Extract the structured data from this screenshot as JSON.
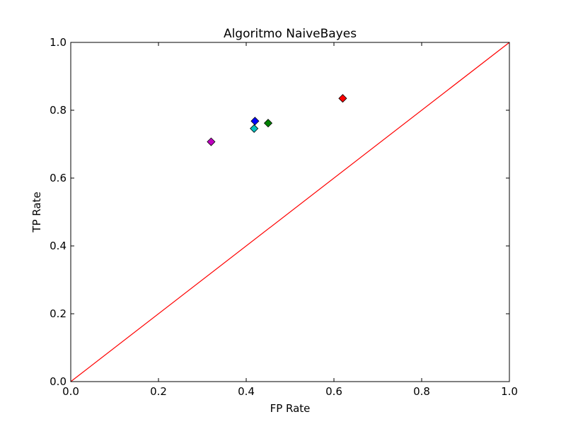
{
  "chart_data": {
    "type": "scatter",
    "title": "Algoritmo NaiveBayes",
    "xlabel": "FP Rate",
    "ylabel": "TP Rate",
    "xlim": [
      0.0,
      1.0
    ],
    "ylim": [
      0.0,
      1.0
    ],
    "xticks": [
      "0.0",
      "0.2",
      "0.4",
      "0.6",
      "0.8",
      "1.0"
    ],
    "yticks": [
      "0.0",
      "0.2",
      "0.4",
      "0.6",
      "0.8",
      "1.0"
    ],
    "grid": false,
    "legend": "none",
    "marker": "diamond",
    "points": [
      {
        "x": 0.42,
        "y": 0.768,
        "color": "#0000ff"
      },
      {
        "x": 0.45,
        "y": 0.762,
        "color": "#008000"
      },
      {
        "x": 0.62,
        "y": 0.835,
        "color": "#ff0000"
      },
      {
        "x": 0.418,
        "y": 0.746,
        "color": "#00bfbf"
      },
      {
        "x": 0.32,
        "y": 0.707,
        "color": "#bf00bf"
      }
    ],
    "reference_line": {
      "from": [
        0,
        0
      ],
      "to": [
        1,
        1
      ],
      "color": "#ff0000"
    }
  }
}
